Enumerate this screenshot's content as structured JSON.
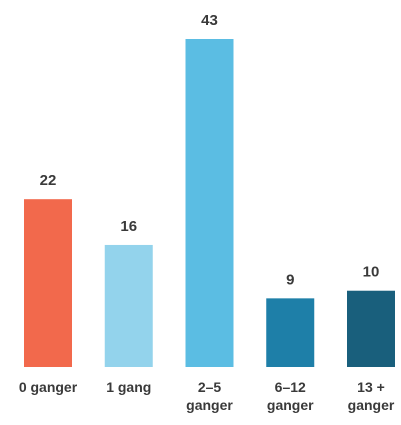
{
  "chart_data": {
    "type": "bar",
    "categories": [
      [
        "0 ganger"
      ],
      [
        "1 gang"
      ],
      [
        "2–5",
        "ganger"
      ],
      [
        "6–12",
        "ganger"
      ],
      [
        "13 +",
        "ganger"
      ]
    ],
    "values": [
      22,
      16,
      43,
      9,
      10
    ],
    "value_labels": [
      "22",
      "16",
      "43",
      "9",
      "10"
    ],
    "colors": [
      "#f2694c",
      "#93d3ec",
      "#5bbde3",
      "#1e7fa8",
      "#195f7c"
    ],
    "ylim": [
      0,
      43
    ],
    "grid": false,
    "legend": "none"
  }
}
